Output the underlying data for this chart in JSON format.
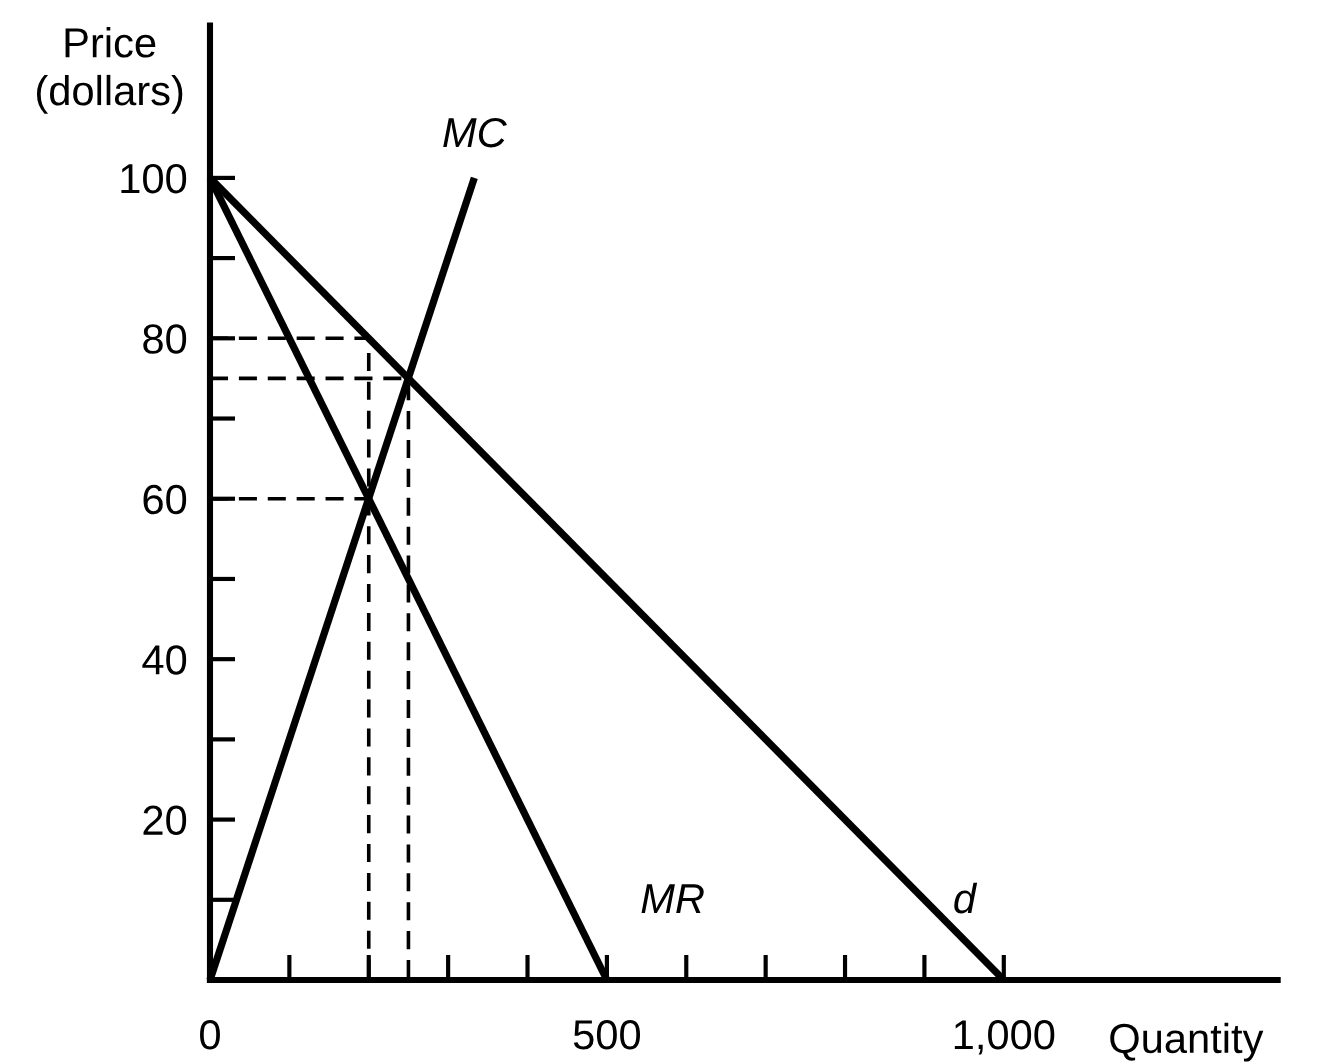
{
  "chart_data": {
    "type": "line",
    "xlabel": "Quantity",
    "ylabel": "Price\n(dollars)",
    "xlim": [
      0,
      1345
    ],
    "ylim": [
      0,
      119
    ],
    "xticks": [
      {
        "value": 0,
        "label": "0"
      },
      {
        "value": 100,
        "label": null
      },
      {
        "value": 200,
        "label": null
      },
      {
        "value": 300,
        "label": null
      },
      {
        "value": 400,
        "label": null
      },
      500,
      {
        "value": 600,
        "label": null
      },
      {
        "value": 700,
        "label": null
      },
      {
        "value": 800,
        "label": null
      },
      {
        "value": 900,
        "label": null
      },
      {
        "value": 1000,
        "label": "1,000"
      }
    ],
    "yticks": [
      {
        "value": 10,
        "label": null
      },
      20,
      {
        "value": 30,
        "label": null
      },
      40,
      {
        "value": 50,
        "label": null
      },
      60,
      {
        "value": 70,
        "label": null
      },
      80,
      {
        "value": 90,
        "label": null
      },
      100
    ],
    "grid": false,
    "legend": false,
    "marker": "none",
    "series": [
      {
        "name": "MC",
        "color": "#000000",
        "line_style": "solid",
        "x": [
          0,
          333
        ],
        "values": [
          0,
          100
        ]
      },
      {
        "name": "MR",
        "color": "#000000",
        "line_style": "solid",
        "x": [
          0,
          500
        ],
        "values": [
          100,
          0
        ]
      },
      {
        "name": "d",
        "color": "#000000",
        "line_style": "solid",
        "x": [
          0,
          1000
        ],
        "values": [
          100,
          0
        ]
      },
      {
        "color": "#000000",
        "line_style": "dashed",
        "x": [
          0,
          200,
          200
        ],
        "values": [
          80,
          80,
          0
        ]
      },
      {
        "color": "#000000",
        "line_style": "dashed",
        "x": [
          0,
          250,
          250
        ],
        "values": [
          75,
          75,
          0
        ]
      },
      {
        "color": "#000000",
        "line_style": "dashed",
        "x": [
          0,
          200
        ],
        "values": [
          60,
          60
        ]
      }
    ]
  }
}
